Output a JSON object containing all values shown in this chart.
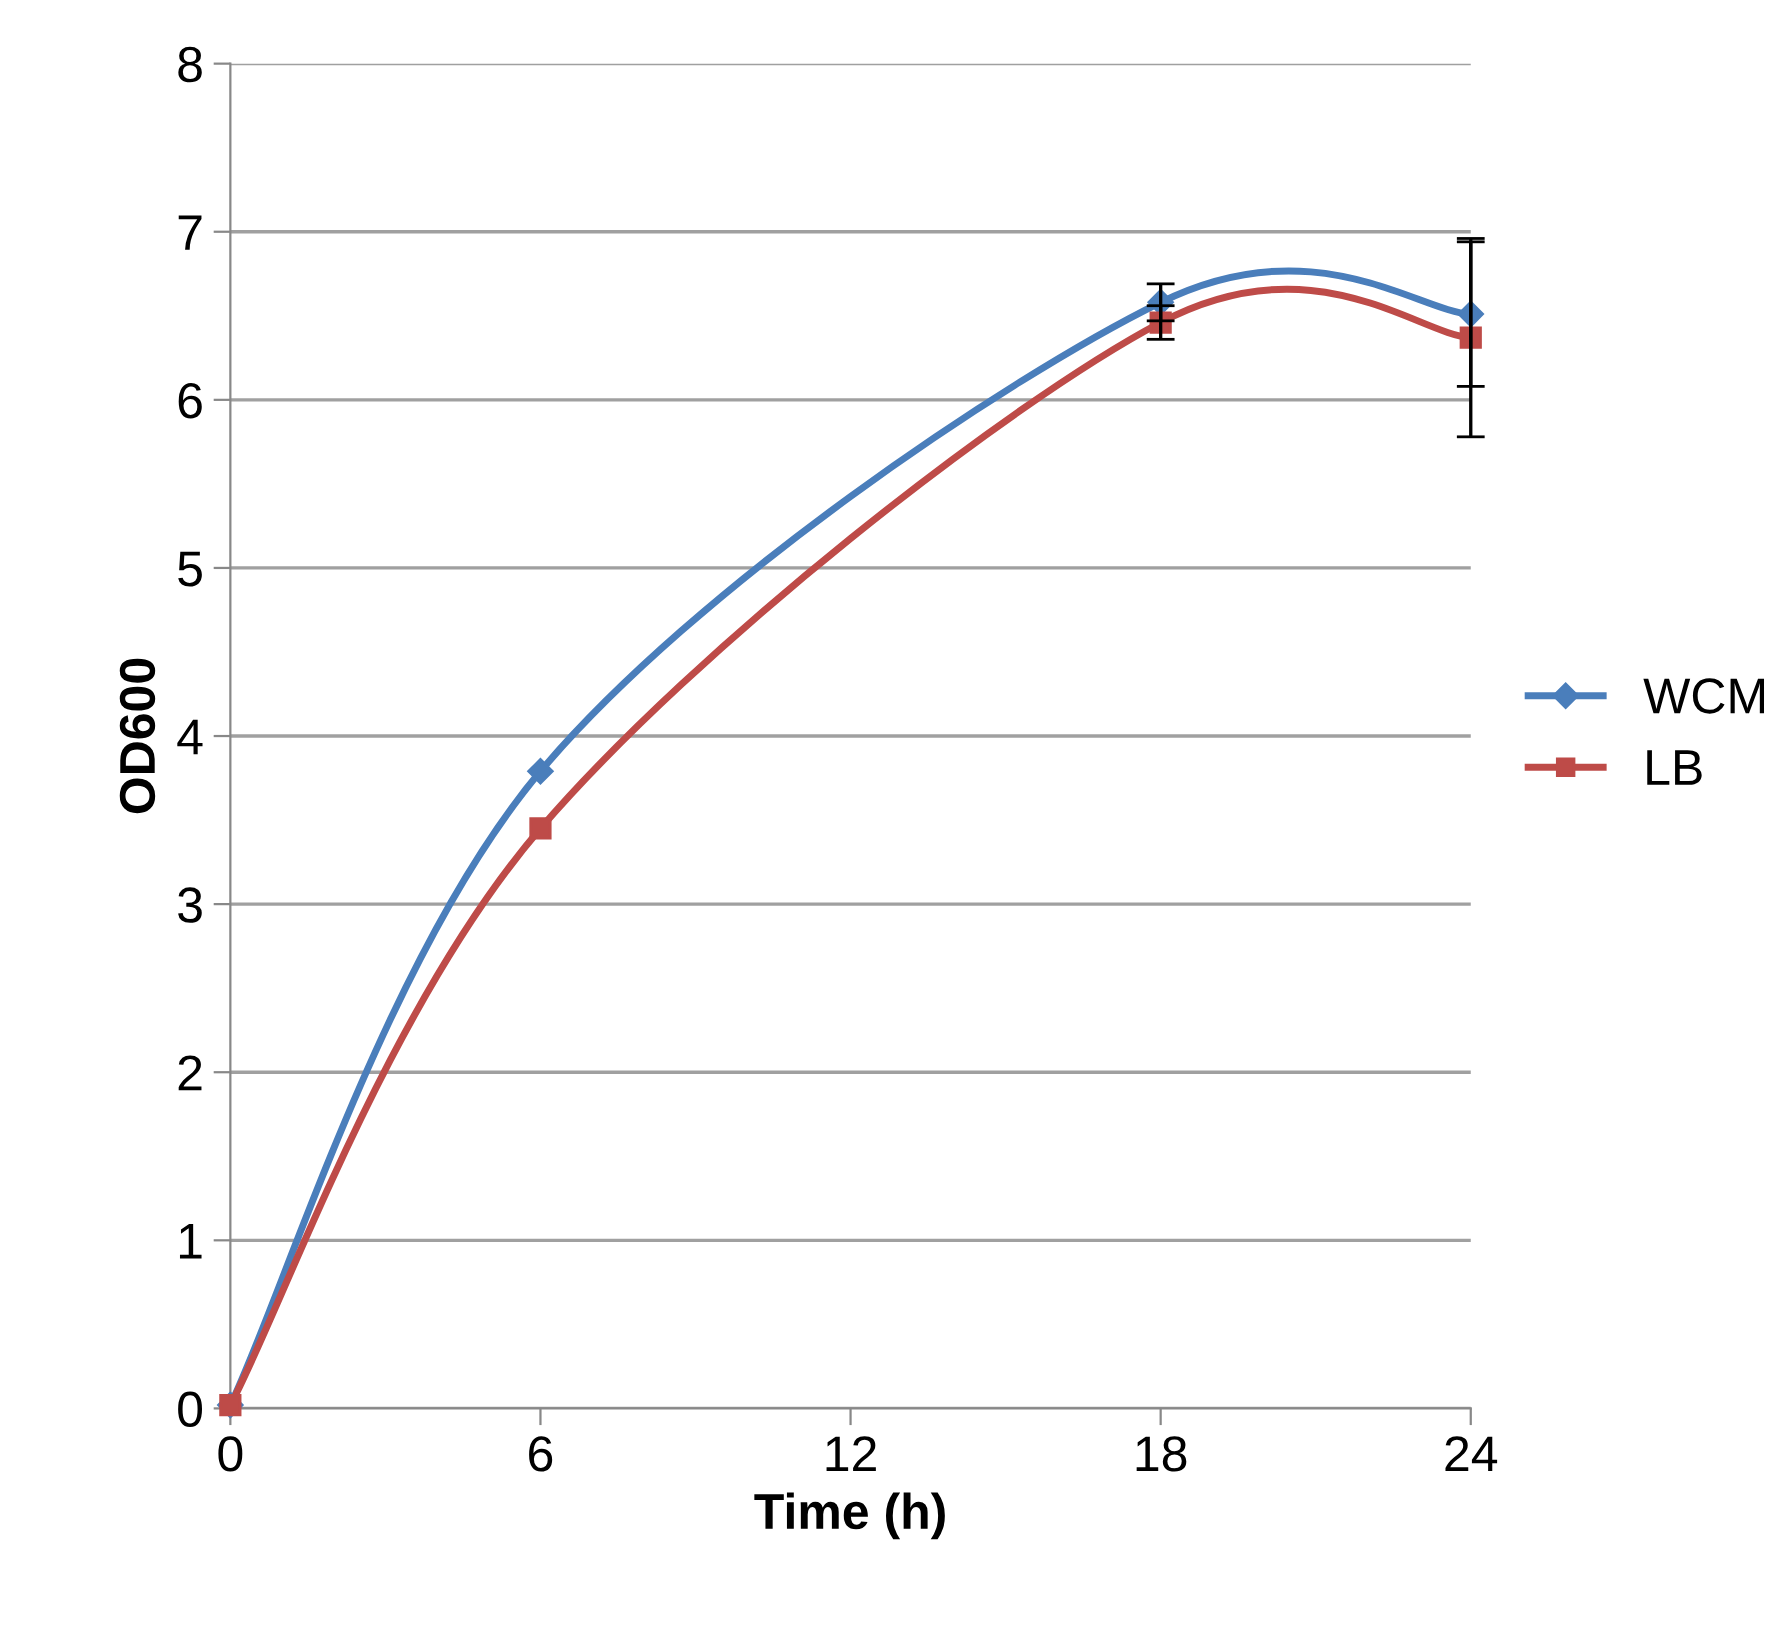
{
  "chart_data": {
    "type": "line",
    "xlabel": "Time (h)",
    "ylabel": "OD600",
    "x": [
      0,
      6,
      18,
      24
    ],
    "xlim": [
      0,
      24
    ],
    "xticks": [
      0,
      6,
      12,
      18,
      24
    ],
    "ylim": [
      0,
      8
    ],
    "yticks": [
      0,
      1,
      2,
      3,
      4,
      5,
      6,
      7,
      8
    ],
    "grid": "y",
    "legend": "right",
    "series": [
      {
        "name": "WCM",
        "color": "#4a7ebb",
        "marker": "diamond",
        "values": [
          0.02,
          3.79,
          6.58,
          6.51
        ],
        "errors": [
          null,
          null,
          0.11,
          0.43
        ]
      },
      {
        "name": "LB",
        "color": "#be4b48",
        "marker": "square",
        "values": [
          0.02,
          3.45,
          6.46,
          6.37
        ],
        "errors": [
          null,
          null,
          0.1,
          0.59
        ]
      }
    ]
  }
}
